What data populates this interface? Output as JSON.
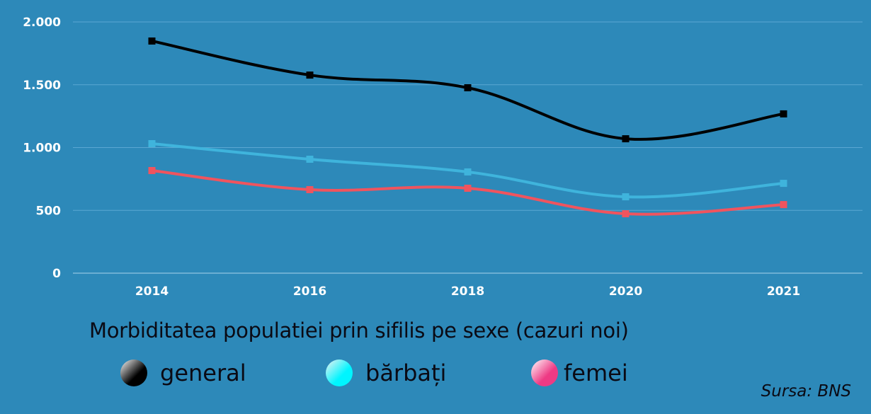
{
  "chart_data": {
    "type": "line",
    "title": "Morbiditatea populatiei prin sifilis pe sexe (cazuri noi)",
    "categories": [
      "2014",
      "2016",
      "2018",
      "2020",
      "2021"
    ],
    "ylim": [
      0,
      2000
    ],
    "yticks": [
      0,
      500,
      1000,
      1500,
      2000
    ],
    "ytick_labels": [
      "0",
      "500",
      "1.000",
      "1.500",
      "2.000"
    ],
    "grid": true,
    "legend_position": "bottom",
    "series": [
      {
        "name": "general",
        "color": "#000000",
        "values": [
          1848,
          1577,
          1476,
          1070,
          1268
        ]
      },
      {
        "name": "bărbați",
        "color": "#3fb4dc",
        "values": [
          1031,
          907,
          806,
          608,
          715
        ]
      },
      {
        "name": "femei",
        "color": "#f0545e",
        "values": [
          817,
          665,
          676,
          473,
          546
        ]
      }
    ],
    "source": "Sursa: BNS"
  }
}
